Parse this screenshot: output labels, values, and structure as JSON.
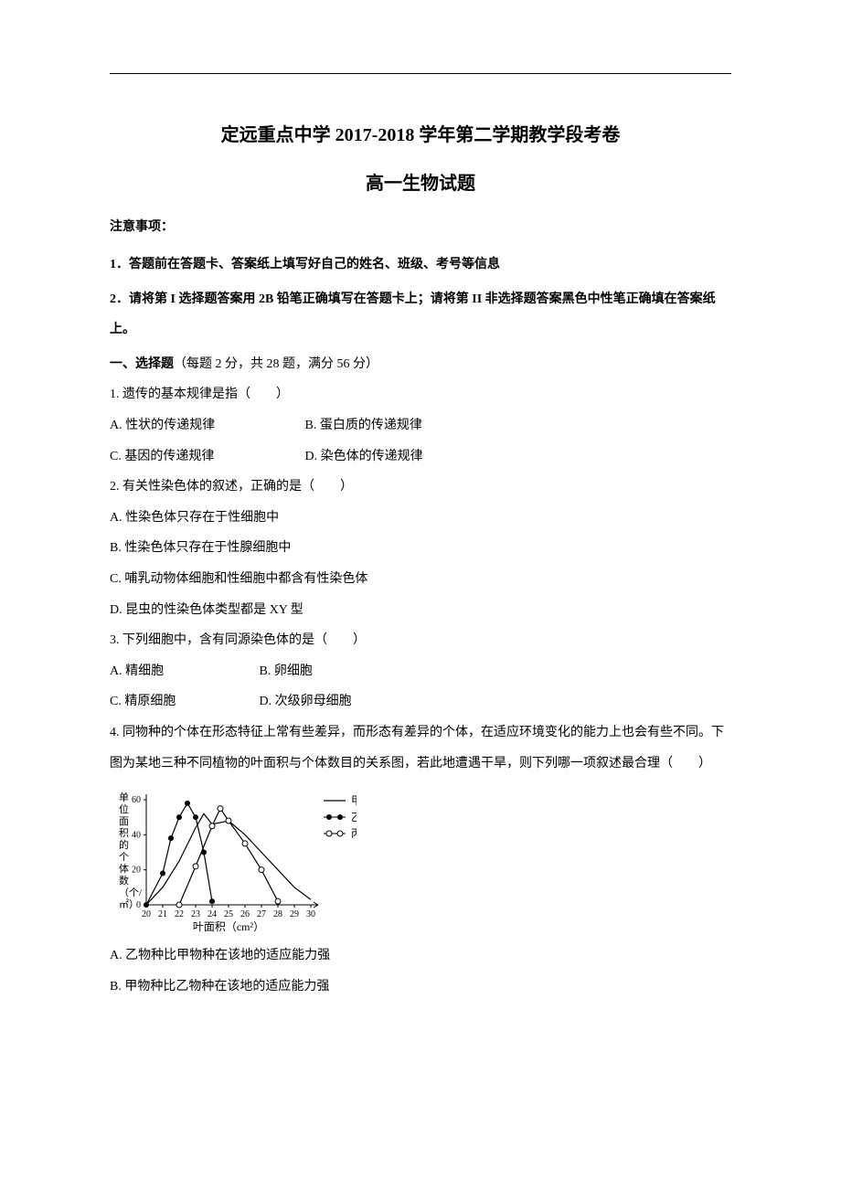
{
  "title_main": "定远重点中学 2017-2018 学年第二学期教学段考卷",
  "title_sub": "高一生物试题",
  "notice_heading": "注意事项：",
  "notice_1": "1．答题前在答题卡、答案纸上填写好自己的姓名、班级、考号等信息",
  "notice_2": "2．请将第 I 选择题答案用 2B 铅笔正确填写在答题卡上；请将第 II 非选择题答案黑色中性笔正确填在答案纸上。",
  "section_1_label": "一、选择题",
  "section_1_desc": "（每题 2 分，共 28 题，满分 56 分）",
  "q1": {
    "text": "1. 遗传的基本规律是指（　　）",
    "a": "A. 性状的传递规律",
    "b": "B. 蛋白质的传递规律",
    "c": "C. 基因的传递规律",
    "d": "D. 染色体的传递规律"
  },
  "q2": {
    "text": "2. 有关性染色体的叙述，正确的是（　　）",
    "a": "A. 性染色体只存在于性细胞中",
    "b": "B. 性染色体只存在于性腺细胞中",
    "c": "C. 哺乳动物体细胞和性细胞中都含有性染色体",
    "d": "D. 昆虫的性染色体类型都是 XY 型"
  },
  "q3": {
    "text": "3. 下列细胞中，含有同源染色体的是（　　）",
    "a": "A. 精细胞",
    "b": "B. 卵细胞",
    "c": "C. 精原细胞",
    "d": "D. 次级卵母细胞"
  },
  "q4": {
    "text_1": "4. 同物种的个体在形态特征上常有些差异，而形态有差异的个体，在适应环境变化的能力上也会有些不同。下图为某地三种不同植物的叶面积与个体数目的关系图，若此地遭遇干旱，则下列哪一项叙述最合理（　　）",
    "a": "A. 乙物种比甲物种在该地的适应能力强",
    "b": "B. 甲物种比乙物种在该地的适应能力强"
  },
  "chart": {
    "type": "line",
    "x_label": "叶面积（cm²）",
    "y_label_lines": [
      "单",
      "位",
      "面",
      "积",
      "的",
      "个",
      "体",
      "数",
      "（个/",
      "㎡）"
    ],
    "x_ticks": [
      20,
      21,
      22,
      23,
      24,
      25,
      26,
      27,
      28,
      29,
      30
    ],
    "y_ticks": [
      0,
      20,
      40,
      60
    ],
    "legend": [
      {
        "label": "甲",
        "marker": "line"
      },
      {
        "label": "乙",
        "marker": "dot"
      },
      {
        "label": "丙",
        "marker": "circle"
      }
    ],
    "series_jia": {
      "x": [
        20,
        21,
        22,
        23,
        23.5,
        24,
        25,
        26,
        27,
        28,
        29,
        30
      ],
      "y": [
        0,
        10,
        25,
        44,
        52,
        46,
        48,
        40,
        30,
        20,
        10,
        3
      ]
    },
    "series_yi": {
      "x": [
        20,
        21,
        21.5,
        22,
        22.5,
        23,
        23.5,
        24
      ],
      "y": [
        0,
        18,
        38,
        50,
        58,
        50,
        30,
        2
      ]
    },
    "series_bing": {
      "x": [
        22,
        23,
        24,
        24.5,
        25,
        26,
        27,
        28
      ],
      "y": [
        0,
        22,
        45,
        55,
        48,
        35,
        20,
        2
      ]
    },
    "colors": {
      "axis": "#000000",
      "line": "#000000",
      "marker_fill_yi": "#000000",
      "marker_fill_bing": "#ffffff",
      "bg": "#ffffff"
    },
    "line_width": 1.2,
    "font_size_axis": 10,
    "font_size_legend": 12
  }
}
